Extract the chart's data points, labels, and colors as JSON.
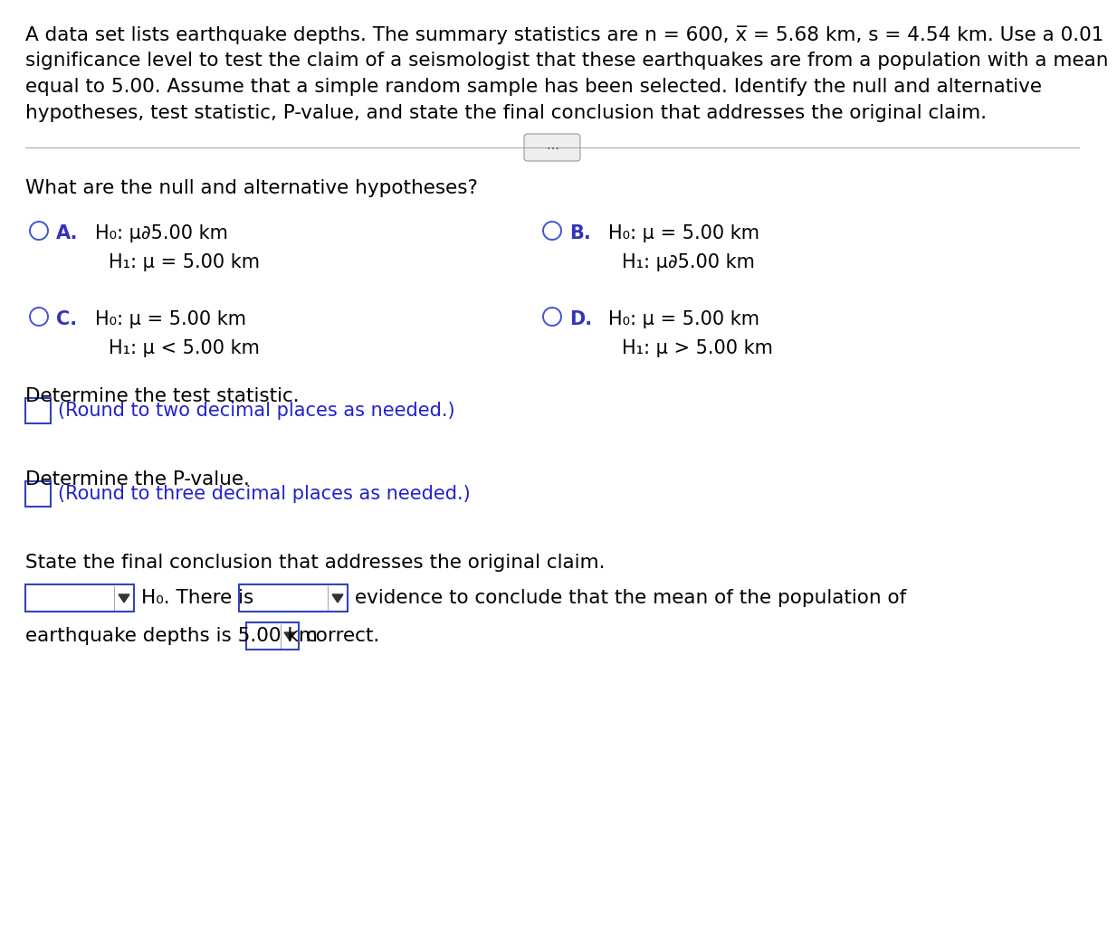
{
  "bg_color": "#ffffff",
  "text_color": "#000000",
  "blue_label_color": "#3333bb",
  "blue_text_color": "#2222cc",
  "box_edge_color": "#3344bb",
  "circle_color": "#4455cc",
  "sep_line_color": "#aaaaaa",
  "btn_edge_color": "#999999",
  "btn_face_color": "#eeeeee",
  "header_lines": [
    "A data set lists earthquake depths. The summary statistics are n = 600, x̅ = 5.68 km, s = 4.54 km. Use a 0.01",
    "significance level to test the claim of a seismologist that these earthquakes are from a population with a mean",
    "equal to 5.00. Assume that a simple random sample has been selected. Identify the null and alternative",
    "hypotheses, test statistic, P-value, and state the final conclusion that addresses the original claim."
  ],
  "question1": "What are the null and alternative hypotheses?",
  "optA_label": "A.",
  "optA_h0": "H₀: μ∂5.00 km",
  "optA_h1": "H₁: μ = 5.00 km",
  "optB_label": "B.",
  "optB_h0": "H₀: μ = 5.00 km",
  "optB_h1": "H₁: μ∂5.00 km",
  "optC_label": "C.",
  "optC_h0": "H₀: μ = 5.00 km",
  "optC_h1": "H₁: μ < 5.00 km",
  "optD_label": "D.",
  "optD_h0": "H₀: μ = 5.00 km",
  "optD_h1": "H₁: μ > 5.00 km",
  "question2": "Determine the test statistic.",
  "hint2": "(Round to two decimal places as needed.)",
  "question3": "Determine the P-value.",
  "hint3": "(Round to three decimal places as needed.)",
  "question4": "State the final conclusion that addresses the original claim.",
  "conc_before_h0": "",
  "conc_h0_text": "H₀",
  "conc_after_h0": ". There is",
  "conc_evidence": "evidence to conclude that the mean of the population of",
  "conc_depth": "earthquake depths is 5.00 km",
  "conc_correct": "correct.",
  "fs_main": 15.5,
  "fs_opt": 15.0
}
